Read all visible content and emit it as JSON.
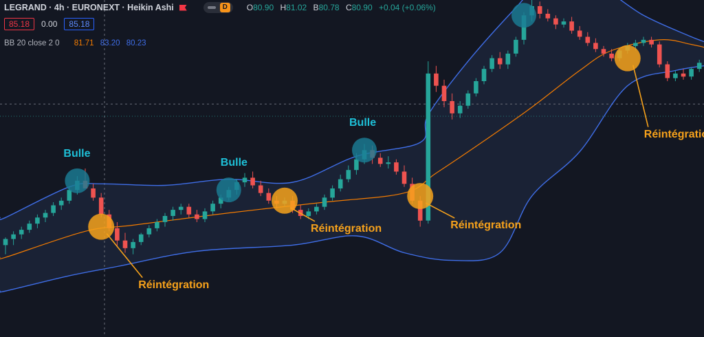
{
  "header": {
    "title": "LEGRAND · 4h · EURONEXT · Heikin Ashi",
    "interval_badge": "D",
    "ohlc": [
      {
        "key": "O",
        "value": "80.90"
      },
      {
        "key": "H",
        "value": "81.02"
      },
      {
        "key": "B",
        "value": "80.78"
      },
      {
        "key": "C",
        "value": "80.90"
      }
    ],
    "change": "+0.04 (+0.06%)"
  },
  "prices": {
    "sell": "85.18",
    "spread": "0.00",
    "buy": "85.18"
  },
  "indicator": {
    "label": "BB 20 close 2 0",
    "middle": "81.71",
    "upper": "83.20",
    "lower": "80.23"
  },
  "colors": {
    "background": "#131722",
    "bull_candle": "#26a69a",
    "bear_candle": "#ef5350",
    "band_line": "#3f6ee8",
    "band_fill": "#1c2437",
    "middle_line": "#f57c00",
    "bulle_label": "#1ec0d8",
    "bulle_marker": "#1b7d95",
    "reintegration_label": "#f7a21b",
    "reintegration_marker": "#f7a21b"
  },
  "chart_data": {
    "type": "candlestick",
    "chart_style": "heikin-ashi",
    "x_axis": "candle index (4h bars)",
    "ylim": [
      70,
      92
    ],
    "grid": false,
    "candles": [
      [
        76.0,
        76.5,
        75.4,
        76.4
      ],
      [
        76.4,
        76.9,
        76.0,
        76.7
      ],
      [
        76.7,
        77.2,
        76.4,
        77.0
      ],
      [
        77.0,
        77.6,
        76.8,
        77.4
      ],
      [
        77.4,
        78.0,
        77.1,
        77.8
      ],
      [
        77.8,
        78.3,
        77.5,
        78.1
      ],
      [
        78.1,
        78.8,
        77.9,
        78.6
      ],
      [
        78.6,
        79.1,
        78.3,
        78.9
      ],
      [
        78.9,
        79.8,
        78.7,
        79.6
      ],
      [
        79.6,
        80.5,
        79.3,
        80.2
      ],
      [
        80.2,
        81.0,
        79.8,
        79.7
      ],
      [
        79.7,
        80.0,
        78.9,
        79.1
      ],
      [
        79.1,
        79.4,
        77.8,
        78.0
      ],
      [
        78.0,
        78.3,
        76.9,
        77.1
      ],
      [
        77.1,
        77.5,
        75.9,
        76.3
      ],
      [
        76.3,
        76.8,
        75.5,
        75.8
      ],
      [
        75.8,
        76.4,
        75.4,
        76.2
      ],
      [
        76.2,
        76.8,
        76.0,
        76.7
      ],
      [
        76.7,
        77.3,
        76.5,
        77.1
      ],
      [
        77.1,
        77.7,
        76.9,
        77.5
      ],
      [
        77.5,
        78.1,
        77.2,
        77.9
      ],
      [
        77.9,
        78.5,
        77.6,
        78.3
      ],
      [
        78.3,
        78.7,
        78.0,
        78.5
      ],
      [
        78.5,
        78.7,
        77.8,
        78.0
      ],
      [
        78.0,
        78.3,
        77.5,
        77.7
      ],
      [
        77.7,
        78.4,
        77.5,
        78.2
      ],
      [
        78.2,
        78.9,
        78.0,
        78.7
      ],
      [
        78.7,
        79.3,
        78.4,
        79.1
      ],
      [
        79.1,
        79.8,
        78.9,
        79.6
      ],
      [
        79.6,
        80.3,
        79.3,
        80.1
      ],
      [
        80.1,
        80.7,
        79.8,
        80.4
      ],
      [
        80.4,
        80.8,
        79.7,
        79.9
      ],
      [
        79.9,
        80.2,
        79.2,
        79.4
      ],
      [
        79.4,
        79.7,
        78.7,
        78.9
      ],
      [
        78.9,
        79.2,
        78.4,
        78.7
      ],
      [
        78.7,
        79.1,
        78.5,
        78.9
      ],
      [
        78.9,
        79.2,
        78.1,
        78.3
      ],
      [
        78.3,
        78.6,
        77.7,
        77.9
      ],
      [
        77.9,
        78.4,
        77.7,
        78.2
      ],
      [
        78.2,
        78.7,
        78.0,
        78.5
      ],
      [
        78.5,
        79.3,
        78.3,
        79.1
      ],
      [
        79.1,
        79.9,
        78.9,
        79.7
      ],
      [
        79.7,
        80.6,
        79.5,
        80.3
      ],
      [
        80.3,
        81.2,
        80.1,
        80.9
      ],
      [
        80.9,
        82.0,
        80.6,
        81.6
      ],
      [
        81.6,
        82.6,
        81.3,
        82.2
      ],
      [
        82.2,
        82.5,
        81.3,
        81.7
      ],
      [
        81.7,
        82.0,
        81.1,
        81.3
      ],
      [
        81.3,
        81.8,
        81.0,
        81.4
      ],
      [
        81.4,
        81.6,
        80.6,
        80.8
      ],
      [
        80.8,
        81.2,
        79.8,
        80.0
      ],
      [
        80.0,
        80.4,
        78.7,
        78.9
      ],
      [
        78.9,
        79.2,
        77.2,
        77.6
      ],
      [
        77.6,
        88.0,
        77.4,
        87.2
      ],
      [
        87.2,
        87.7,
        86.0,
        86.4
      ],
      [
        86.4,
        86.8,
        85.0,
        85.4
      ],
      [
        85.4,
        85.9,
        84.2,
        84.6
      ],
      [
        84.6,
        85.4,
        84.3,
        85.1
      ],
      [
        85.1,
        86.1,
        84.9,
        85.9
      ],
      [
        85.9,
        86.9,
        85.7,
        86.7
      ],
      [
        86.7,
        87.7,
        86.5,
        87.5
      ],
      [
        87.5,
        88.4,
        87.3,
        88.2
      ],
      [
        88.2,
        88.6,
        87.5,
        87.8
      ],
      [
        87.8,
        88.7,
        87.5,
        88.5
      ],
      [
        88.5,
        89.6,
        88.3,
        89.4
      ],
      [
        89.4,
        91.2,
        89.1,
        91.0
      ],
      [
        91.0,
        92.0,
        90.6,
        91.6
      ],
      [
        91.6,
        91.9,
        90.8,
        91.1
      ],
      [
        91.1,
        91.4,
        90.6,
        90.8
      ],
      [
        90.8,
        91.0,
        90.1,
        90.4
      ],
      [
        90.4,
        90.8,
        90.2,
        90.6
      ],
      [
        90.6,
        90.9,
        89.8,
        90.0
      ],
      [
        90.0,
        90.3,
        89.4,
        89.6
      ],
      [
        89.6,
        89.9,
        89.0,
        89.2
      ],
      [
        89.2,
        89.5,
        88.6,
        88.8
      ],
      [
        88.8,
        89.0,
        88.3,
        88.5
      ],
      [
        88.5,
        88.8,
        88.0,
        88.2
      ],
      [
        88.2,
        88.9,
        88.0,
        88.7
      ],
      [
        88.7,
        89.2,
        88.5,
        89.0
      ],
      [
        89.0,
        89.4,
        88.7,
        89.2
      ],
      [
        89.2,
        89.6,
        89.0,
        89.4
      ],
      [
        89.4,
        89.6,
        88.9,
        89.1
      ],
      [
        89.1,
        89.3,
        87.6,
        87.8
      ],
      [
        87.8,
        88.0,
        86.7,
        86.9
      ],
      [
        86.9,
        87.4,
        86.7,
        87.2
      ],
      [
        87.2,
        87.5,
        86.8,
        87.0
      ],
      [
        87.0,
        87.6,
        86.8,
        87.5
      ],
      [
        87.5,
        88.1,
        87.3,
        87.9
      ],
      [
        87.9,
        88.5,
        87.7,
        88.3
      ],
      [
        88.3,
        89.0,
        88.1,
        88.8
      ]
    ],
    "bands": {
      "upper": [
        {
          "i": 0,
          "v": 77.8
        },
        {
          "i": 8,
          "v": 79.8
        },
        {
          "i": 12,
          "v": 80.0
        },
        {
          "i": 20,
          "v": 79.9
        },
        {
          "i": 28,
          "v": 80.3
        },
        {
          "i": 36,
          "v": 80.1
        },
        {
          "i": 44,
          "v": 81.8
        },
        {
          "i": 52,
          "v": 82.7
        },
        {
          "i": 53,
          "v": 84.5
        },
        {
          "i": 58,
          "v": 88.0
        },
        {
          "i": 64,
          "v": 91.5
        },
        {
          "i": 68,
          "v": 93.5
        },
        {
          "i": 74,
          "v": 93.0
        },
        {
          "i": 80,
          "v": 91.0
        },
        {
          "i": 86,
          "v": 89.6
        },
        {
          "i": 89,
          "v": 89.0
        }
      ],
      "middle": [
        {
          "i": 0,
          "v": 75.2
        },
        {
          "i": 10,
          "v": 76.9
        },
        {
          "i": 16,
          "v": 77.3
        },
        {
          "i": 28,
          "v": 78.1
        },
        {
          "i": 40,
          "v": 78.8
        },
        {
          "i": 50,
          "v": 79.4
        },
        {
          "i": 54,
          "v": 80.7
        },
        {
          "i": 60,
          "v": 82.8
        },
        {
          "i": 66,
          "v": 85.0
        },
        {
          "i": 72,
          "v": 87.4
        },
        {
          "i": 76,
          "v": 88.7
        },
        {
          "i": 82,
          "v": 89.4
        },
        {
          "i": 86,
          "v": 89.1
        },
        {
          "i": 89,
          "v": 88.7
        }
      ],
      "lower": [
        {
          "i": 0,
          "v": 73.0
        },
        {
          "i": 8,
          "v": 74.0
        },
        {
          "i": 14,
          "v": 74.6
        },
        {
          "i": 24,
          "v": 75.6
        },
        {
          "i": 36,
          "v": 76.0
        },
        {
          "i": 44,
          "v": 76.6
        },
        {
          "i": 50,
          "v": 75.5
        },
        {
          "i": 56,
          "v": 75.0
        },
        {
          "i": 62,
          "v": 75.5
        },
        {
          "i": 66,
          "v": 79.2
        },
        {
          "i": 72,
          "v": 82.1
        },
        {
          "i": 78,
          "v": 86.4
        },
        {
          "i": 84,
          "v": 87.4
        },
        {
          "i": 89,
          "v": 87.8
        }
      ]
    },
    "annotations": [
      {
        "type": "bulle",
        "text": "Bulle",
        "i": 9,
        "v": 80.2
      },
      {
        "type": "bulle",
        "text": "Bulle",
        "i": 28,
        "v": 79.6
      },
      {
        "type": "bulle",
        "text": "Bulle",
        "i": 45,
        "v": 82.2
      },
      {
        "type": "bulle",
        "text": "Bulle",
        "i": 65,
        "v": 91.0
      },
      {
        "type": "reintegration",
        "text": "Réintégration",
        "i": 12,
        "v": 77.2
      },
      {
        "type": "reintegration",
        "text": "Réintégration",
        "i": 35,
        "v": 78.9
      },
      {
        "type": "reintegration",
        "text": "Réintégration",
        "i": 52,
        "v": 79.2
      },
      {
        "type": "reintegration",
        "text": "Réintégration",
        "i": 78,
        "v": 88.2
      }
    ]
  }
}
